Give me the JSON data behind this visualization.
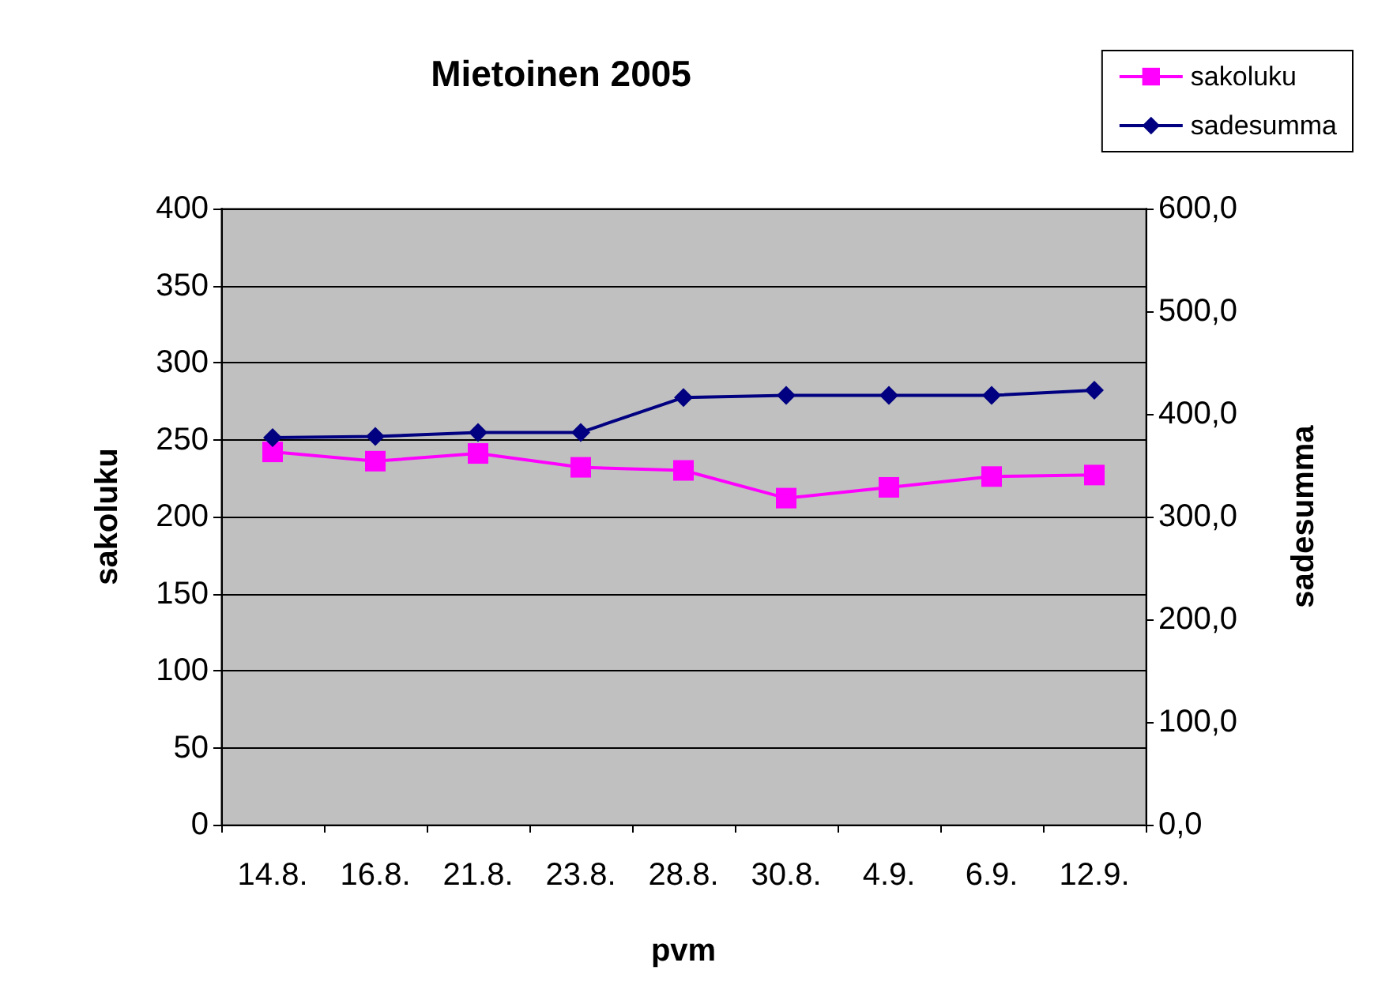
{
  "chart_data": {
    "type": "line",
    "title": "Mietoinen 2005",
    "xlabel": "pvm",
    "ylabel": "sakoluku",
    "y2label": "sadesumma",
    "categories": [
      "14.8.",
      "16.8.",
      "21.8.",
      "23.8.",
      "28.8.",
      "30.8.",
      "4.9.",
      "6.9.",
      "12.9."
    ],
    "series": [
      {
        "name": "sakoluku",
        "color": "#ff00ff",
        "marker": "square",
        "values": [
          242,
          236,
          241,
          232,
          230,
          212,
          219,
          226,
          227
        ]
      },
      {
        "name": "sadesumma",
        "color": "#000080",
        "marker": "diamond",
        "axis": "y2",
        "values": [
          377,
          378,
          382,
          382,
          416,
          418,
          418,
          418,
          423
        ]
      }
    ],
    "ylim": [
      0,
      400
    ],
    "yticks": [
      0,
      50,
      100,
      150,
      200,
      250,
      300,
      350,
      400
    ],
    "y2lim": [
      0,
      600
    ],
    "y2ticks": [
      {
        "value": 0,
        "label": "0,0"
      },
      {
        "value": 100,
        "label": "100,0"
      },
      {
        "value": 200,
        "label": "200,0"
      },
      {
        "value": 300,
        "label": "300,0"
      },
      {
        "value": 400,
        "label": "400,0"
      },
      {
        "value": 500,
        "label": "500,0"
      },
      {
        "value": 600,
        "label": "600,0"
      }
    ],
    "grid": "y",
    "legend": "top right"
  }
}
